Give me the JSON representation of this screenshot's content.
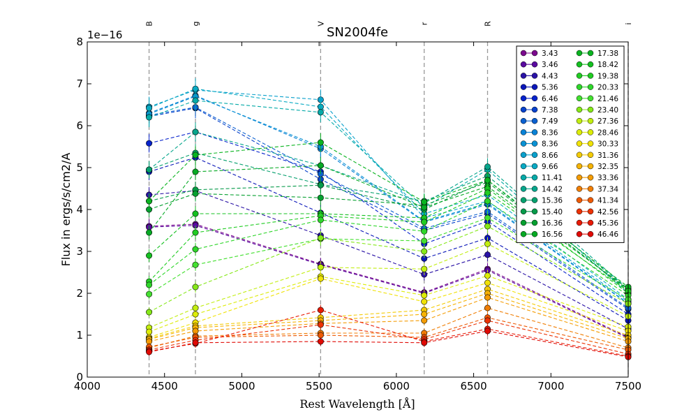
{
  "chart_data": {
    "type": "line",
    "title": "SN2004fe",
    "xlabel": "Rest Wavelength [Å]",
    "ylabel": "Flux in ergs/s/cm2/A",
    "y_offset_label": "1e−16",
    "xlim": [
      4000,
      7500
    ],
    "ylim": [
      0,
      8
    ],
    "xticks": [
      "4000",
      "4500",
      "5000",
      "5500",
      "6000",
      "6500",
      "7000",
      "7500"
    ],
    "yticks": [
      "0",
      "1",
      "2",
      "3",
      "4",
      "5",
      "6",
      "7",
      "8"
    ],
    "bands": [
      {
        "name": "B",
        "wavelength": 4400
      },
      {
        "name": "g",
        "wavelength": 4700
      },
      {
        "name": "V",
        "wavelength": 5510
      },
      {
        "name": "r",
        "wavelength": 6180
      },
      {
        "name": "R",
        "wavelength": 6590
      },
      {
        "name": "i",
        "wavelength": 7500
      }
    ],
    "x": [
      4400,
      4700,
      5510,
      6180,
      6590,
      7500
    ],
    "line_style": "dashed",
    "legend_position": "top-right",
    "series": [
      {
        "name": "3.43",
        "color": "#7c0a8e",
        "values": [
          3.6,
          3.65,
          2.7,
          2.02,
          2.58,
          0.95
        ]
      },
      {
        "name": "3.46",
        "color": "#5a0aa0",
        "values": [
          3.58,
          3.62,
          2.68,
          2.0,
          2.55,
          0.93
        ]
      },
      {
        "name": "4.43",
        "color": "#2a12a6",
        "values": [
          4.35,
          4.45,
          3.38,
          2.45,
          2.92,
          1.15
        ]
      },
      {
        "name": "5.36",
        "color": "#0a16b8",
        "values": [
          4.9,
          5.24,
          3.92,
          2.83,
          3.32,
          1.35
        ]
      },
      {
        "name": "6.46",
        "color": "#0622cc",
        "values": [
          5.58,
          5.85,
          4.9,
          3.18,
          3.72,
          1.5
        ]
      },
      {
        "name": "7.38",
        "color": "#0842cc",
        "values": [
          6.22,
          6.42,
          4.72,
          3.5,
          3.9,
          1.62
        ]
      },
      {
        "name": "7.49",
        "color": "#0a60d0",
        "values": [
          6.25,
          6.44,
          4.85,
          3.55,
          3.95,
          1.65
        ]
      },
      {
        "name": "8.36",
        "color": "#0a82d6",
        "values": [
          6.3,
          6.72,
          5.45,
          3.7,
          4.12,
          1.75
        ]
      },
      {
        "name": "8.36",
        "color": "#0a92d4",
        "values": [
          6.28,
          6.7,
          5.5,
          3.72,
          4.15,
          1.76
        ]
      },
      {
        "name": "8.66",
        "color": "#0aa0cc",
        "values": [
          6.45,
          6.85,
          6.62,
          3.8,
          4.2,
          1.8
        ]
      },
      {
        "name": "9.66",
        "color": "#0aaac4",
        "values": [
          6.42,
          6.88,
          6.45,
          3.9,
          4.35,
          1.85
        ]
      },
      {
        "name": "11.41",
        "color": "#06aaa8",
        "values": [
          6.2,
          6.6,
          6.32,
          4.05,
          4.95,
          2.0
        ]
      },
      {
        "name": "14.42",
        "color": "#06a68c",
        "values": [
          4.95,
          5.85,
          5.05,
          4.15,
          5.02,
          2.1
        ]
      },
      {
        "name": "15.36",
        "color": "#06a06e",
        "values": [
          4.95,
          5.35,
          4.6,
          4.2,
          4.8,
          2.1
        ]
      },
      {
        "name": "15.40",
        "color": "#069a4a",
        "values": [
          4.2,
          4.47,
          4.58,
          4.0,
          4.7,
          2.05
        ]
      },
      {
        "name": "16.36",
        "color": "#06a030",
        "values": [
          4.0,
          4.38,
          4.28,
          4.1,
          4.65,
          2.08
        ]
      },
      {
        "name": "16.56",
        "color": "#06aa24",
        "values": [
          3.45,
          4.9,
          5.05,
          4.05,
          4.55,
          2.1
        ]
      },
      {
        "name": "17.38",
        "color": "#0ab420",
        "values": [
          4.2,
          5.3,
          5.6,
          4.18,
          4.7,
          2.15
        ]
      },
      {
        "name": "18.42",
        "color": "#14c020",
        "values": [
          2.9,
          3.9,
          3.9,
          3.8,
          4.5,
          2.0
        ]
      },
      {
        "name": "19.38",
        "color": "#20cc22",
        "values": [
          2.28,
          3.45,
          3.85,
          3.7,
          4.4,
          2.05
        ]
      },
      {
        "name": "20.33",
        "color": "#2ed62a",
        "values": [
          2.2,
          3.05,
          3.75,
          3.48,
          4.2,
          1.95
        ]
      },
      {
        "name": "21.46",
        "color": "#44e030",
        "values": [
          1.98,
          2.68,
          3.3,
          3.25,
          3.8,
          1.85
        ]
      },
      {
        "name": "23.40",
        "color": "#86e818",
        "values": [
          1.55,
          2.15,
          3.32,
          3.0,
          3.6,
          1.75
        ]
      },
      {
        "name": "27.36",
        "color": "#c2ee10",
        "values": [
          1.18,
          1.65,
          2.62,
          2.58,
          3.18,
          1.45
        ]
      },
      {
        "name": "28.46",
        "color": "#dcec08",
        "values": [
          1.08,
          1.5,
          2.4,
          1.95,
          2.42,
          1.2
        ]
      },
      {
        "name": "30.33",
        "color": "#f0e206",
        "values": [
          0.95,
          1.3,
          2.35,
          1.8,
          2.25,
          1.1
        ]
      },
      {
        "name": "31.36",
        "color": "#f4cc06",
        "values": [
          0.92,
          1.22,
          1.42,
          1.6,
          2.1,
          1.0
        ]
      },
      {
        "name": "32.35",
        "color": "#f6b404",
        "values": [
          0.9,
          1.18,
          1.35,
          1.5,
          2.0,
          0.92
        ]
      },
      {
        "name": "33.36",
        "color": "#f49c04",
        "values": [
          0.85,
          1.1,
          1.28,
          1.35,
          1.9,
          0.85
        ]
      },
      {
        "name": "37.34",
        "color": "#f07e04",
        "values": [
          0.7,
          0.98,
          1.05,
          1.05,
          1.65,
          0.7
        ]
      },
      {
        "name": "41.34",
        "color": "#ee5a04",
        "values": [
          0.72,
          0.95,
          1.0,
          0.95,
          1.42,
          0.65
        ]
      },
      {
        "name": "42.56",
        "color": "#ec3204",
        "values": [
          0.65,
          0.88,
          1.25,
          0.9,
          1.35,
          0.55
        ]
      },
      {
        "name": "45.36",
        "color": "#e81a04",
        "values": [
          0.62,
          0.8,
          1.6,
          0.85,
          1.15,
          0.5
        ]
      },
      {
        "name": "46.46",
        "color": "#e00a04",
        "values": [
          0.6,
          0.82,
          0.85,
          0.82,
          1.1,
          0.48
        ]
      }
    ]
  }
}
